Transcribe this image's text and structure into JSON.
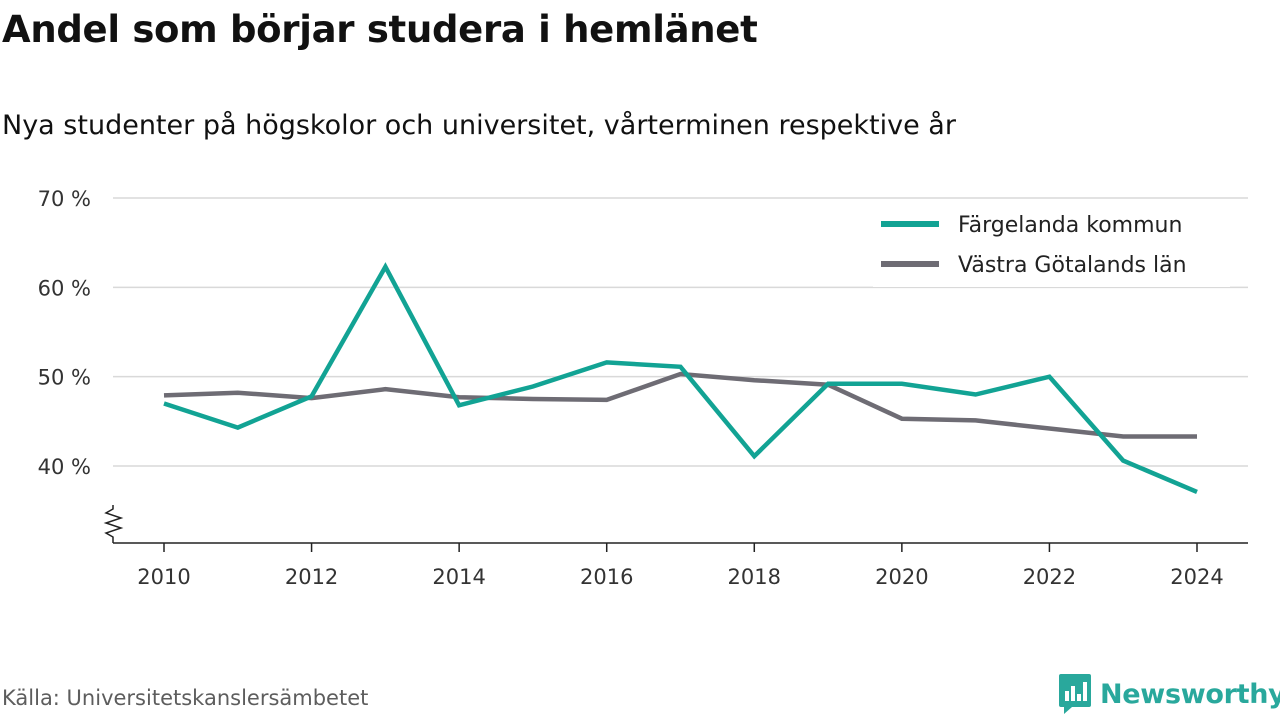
{
  "title": "Andel som börjar studera i hemlänet",
  "subtitle": "Nya studenter på högskolor och universitet, vårterminen respektive år",
  "source": "Källa: Universitetskanslersämbetet",
  "brand": {
    "name": "Newsworthy",
    "icon": "newsworthy-logo-icon",
    "color": "#29a89c"
  },
  "chart_data": {
    "type": "line",
    "x": [
      2010,
      2011,
      2012,
      2013,
      2014,
      2015,
      2016,
      2017,
      2018,
      2019,
      2020,
      2021,
      2022,
      2023,
      2024
    ],
    "xticks": [
      2010,
      2012,
      2014,
      2016,
      2018,
      2020,
      2022,
      2024
    ],
    "xtick_labels": [
      "2010",
      "2012",
      "2014",
      "2016",
      "2018",
      "2020",
      "2022",
      "2024"
    ],
    "yticks": [
      40,
      50,
      60,
      70
    ],
    "ytick_labels": [
      "40 %",
      "50 %",
      "60 %",
      "70 %"
    ],
    "ylim": [
      32,
      70
    ],
    "y_axis_break": true,
    "grid": true,
    "legend_position": "top-right",
    "series": [
      {
        "name": "Färgelanda kommun",
        "color": "#12a394",
        "values": [
          47.0,
          44.3,
          47.8,
          62.3,
          46.8,
          48.9,
          51.6,
          51.1,
          41.1,
          49.2,
          49.2,
          48.0,
          50.0,
          40.6,
          37.1
        ]
      },
      {
        "name": "Västra Götalands län",
        "color": "#6e6c74",
        "values": [
          47.9,
          48.2,
          47.6,
          48.6,
          47.7,
          47.5,
          47.4,
          50.3,
          49.6,
          49.1,
          45.3,
          45.1,
          44.2,
          43.3,
          43.3
        ]
      }
    ]
  }
}
